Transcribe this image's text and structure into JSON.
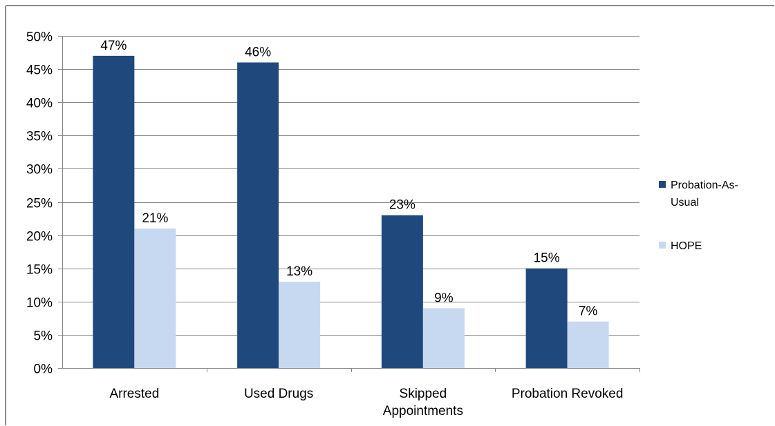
{
  "chart_data": {
    "type": "bar",
    "categories": [
      [
        "Arrested"
      ],
      [
        "Used Drugs"
      ],
      [
        "Skipped",
        "Appointments"
      ],
      [
        "Probation Revoked"
      ]
    ],
    "series": [
      {
        "name": "Probation-As-Usual",
        "values": [
          47,
          46,
          23,
          15
        ],
        "labels": [
          "47%",
          "46%",
          "23%",
          "15%"
        ],
        "color": "#1f497d"
      },
      {
        "name": "HOPE",
        "values": [
          21,
          13,
          9,
          7
        ],
        "labels": [
          "21%",
          "13%",
          "9%",
          "7%"
        ],
        "color": "#c6d9f1"
      }
    ],
    "ylim": [
      0,
      50
    ],
    "yticks": [
      "0%",
      "5%",
      "10%",
      "15%",
      "20%",
      "25%",
      "30%",
      "35%",
      "40%",
      "45%",
      "50%"
    ],
    "grid": true,
    "legend_position": "right",
    "legend": [
      {
        "lines": [
          "Probation-As-",
          "Usual"
        ],
        "color": "#1f497d"
      },
      {
        "lines": [
          "HOPE"
        ],
        "color": "#c6d9f1"
      }
    ]
  }
}
